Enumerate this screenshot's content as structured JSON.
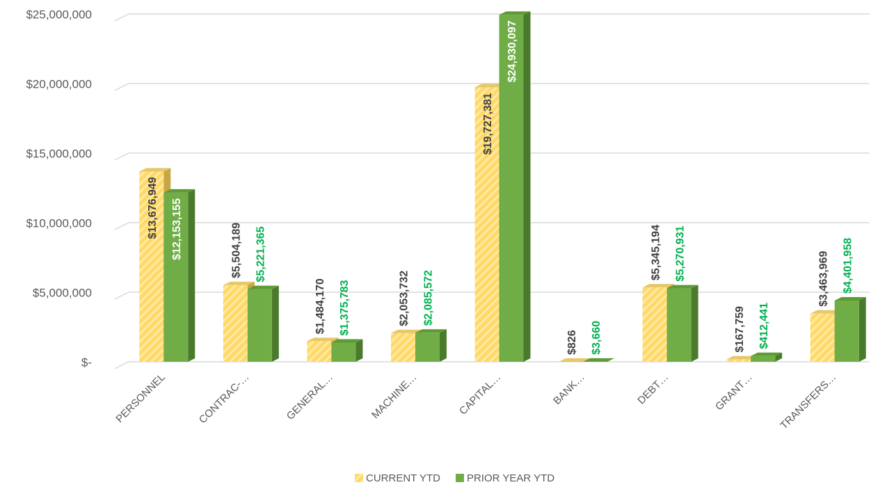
{
  "chart_data": {
    "type": "bar3d",
    "categories": [
      "PERSONNEL",
      "CONTRAC-…",
      "GENERAL…",
      "MACHINE…",
      "CAPITAL…",
      "BANK…",
      "DEBT…",
      "GRANT…",
      "TRANSFERS…"
    ],
    "series": [
      {
        "name": "CURRENT YTD",
        "color": "#ffd966",
        "values": [
          13676949,
          5504189,
          1484170,
          2053732,
          19727381,
          826,
          5345194,
          167759,
          3463969
        ],
        "value_labels": [
          "$13,676,949",
          "$5,504,189",
          "$1,484,170",
          "$2,053,732",
          "$19,727,381",
          "$826",
          "$5,345,194",
          "$167,759",
          "$3,463,969"
        ]
      },
      {
        "name": "PRIOR YEAR YTD",
        "color": "#70ad47",
        "values": [
          12153155,
          5221365,
          1375783,
          2085572,
          24930097,
          3660,
          5270931,
          412441,
          4401958
        ],
        "value_labels": [
          "$12,153,155",
          "$5,221,365",
          "$1,375,783",
          "$2,085,572",
          "$24,930,097",
          "$3,660",
          "$5,270,931",
          "$412,441",
          "$4,401,958"
        ]
      }
    ],
    "ylim": [
      0,
      25000000
    ],
    "yticks": [
      {
        "value": 0,
        "label": "$-"
      },
      {
        "value": 5000000,
        "label": "$5,000,000"
      },
      {
        "value": 10000000,
        "label": "$10,000,000"
      },
      {
        "value": 15000000,
        "label": "$15,000,000"
      },
      {
        "value": 20000000,
        "label": "$20,000,000"
      },
      {
        "value": 25000000,
        "label": "$25,000,000"
      }
    ],
    "grid": true,
    "legend": "bottom"
  }
}
